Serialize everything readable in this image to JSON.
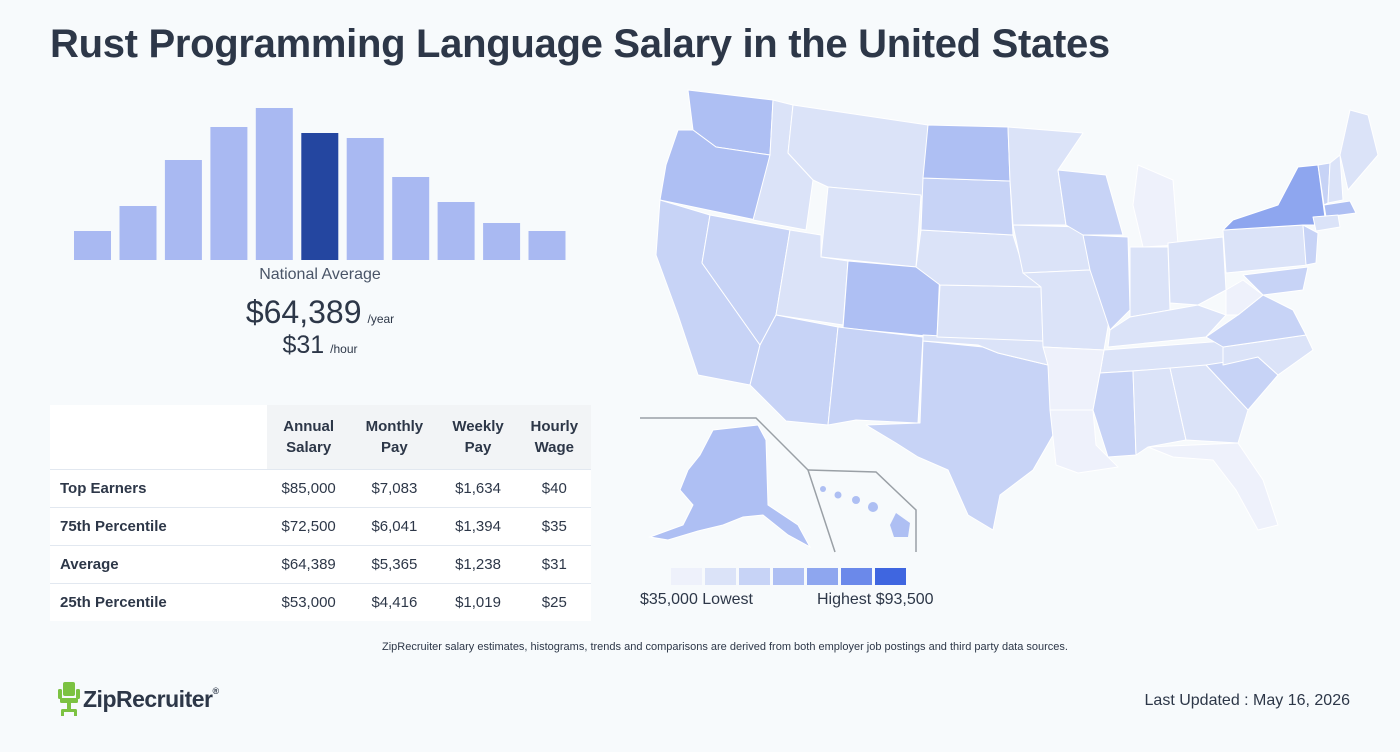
{
  "page": {
    "title": "Rust Programming Language Salary in the United States"
  },
  "national": {
    "label": "National Average",
    "annual": "$64,389",
    "annual_unit": "/year",
    "hourly": "$31",
    "hourly_unit": "/hour"
  },
  "chart_data": {
    "type": "bar",
    "title": "",
    "xlabel": "",
    "ylabel": "",
    "bar_color": "#a9b9f2",
    "highlight_color": "#2446a0",
    "highlight_index": 5,
    "values": [
      29,
      54,
      100,
      133,
      152,
      127,
      122,
      83,
      58,
      37,
      29
    ]
  },
  "table": {
    "headers": [
      "Annual\nSalary",
      "Monthly\nPay",
      "Weekly\nPay",
      "Hourly\nWage"
    ],
    "rows": [
      {
        "label": "Top Earners",
        "annual": "$85,000",
        "monthly": "$7,083",
        "weekly": "$1,634",
        "hourly": "$40"
      },
      {
        "label": "75th Percentile",
        "annual": "$72,500",
        "monthly": "$6,041",
        "weekly": "$1,394",
        "hourly": "$35"
      },
      {
        "label": "Average",
        "annual": "$64,389",
        "monthly": "$5,365",
        "weekly": "$1,238",
        "hourly": "$31"
      },
      {
        "label": "25th Percentile",
        "annual": "$53,000",
        "monthly": "$4,416",
        "weekly": "$1,019",
        "hourly": "$25"
      }
    ]
  },
  "legend": {
    "low": "$35,000 Lowest",
    "high": "Highest $93,500",
    "colors": [
      "#eef1fb",
      "#dbe3f8",
      "#c7d3f6",
      "#aebff3",
      "#8ea6ef",
      "#6b89ea",
      "#3f66e0"
    ]
  },
  "footnote": "ZipRecruiter salary estimates, histograms, trends and comparisons are derived from both employer job postings and third party data sources.",
  "brand": {
    "name": "ZipRecruiter",
    "mark": "®",
    "color": "#7cc242"
  },
  "updated": "Last Updated : May 16, 2026"
}
